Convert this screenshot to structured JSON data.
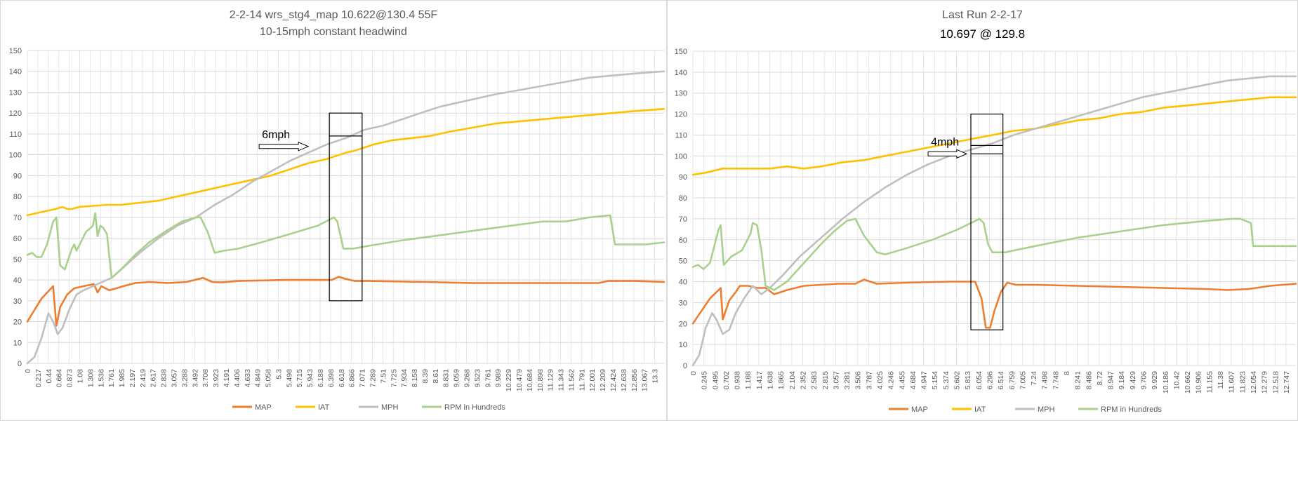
{
  "chart_data": [
    {
      "type": "line",
      "title": "2-2-14 wrs_stg4_map 10.622@130.4  55F",
      "subtitle": "10-15mph constant headwind",
      "ylim": [
        0,
        150
      ],
      "yticks": [
        0,
        10,
        20,
        30,
        40,
        50,
        60,
        70,
        80,
        90,
        100,
        110,
        120,
        130,
        140,
        150
      ],
      "xlim": [
        0,
        13.6
      ],
      "x_tick_labels": [
        "0",
        "0.217",
        "0.44",
        "0.664",
        "0.873",
        "1.08",
        "1.308",
        "1.536",
        "1.761",
        "1.985",
        "2.197",
        "2.419",
        "2.617",
        "2.838",
        "3.057",
        "3.288",
        "3.492",
        "3.708",
        "3.923",
        "4.191",
        "4.406",
        "4.633",
        "4.849",
        "5.058",
        "5.3",
        "5.498",
        "5.715",
        "5.943",
        "6.188",
        "6.398",
        "6.618",
        "6.866",
        "7.071",
        "7.289",
        "7.51",
        "7.725",
        "7.934",
        "8.158",
        "8.39",
        "8.61",
        "8.831",
        "9.059",
        "9.268",
        "9.523",
        "9.761",
        "9.989",
        "10.229",
        "10.479",
        "10.684",
        "10.898",
        "11.129",
        "11.343",
        "11.562",
        "11.791",
        "12.001",
        "12.209",
        "12.424",
        "12.638",
        "12.856",
        "13.067",
        "13.3"
      ],
      "grid": true,
      "legend_position": "bottom",
      "legend": [
        "MAP",
        "IAT",
        "MPH",
        "RPM in Hundreds"
      ],
      "colors": [
        "#ED7D31",
        "#FFC000",
        "#BFBFBF",
        "#A9D18E"
      ],
      "annotation": {
        "text": "6mph",
        "box": {
          "x0": 6.45,
          "x1": 7.15,
          "y0": 30,
          "y1": 120,
          "mid_y": 109
        },
        "arrow_from_x": 4.95,
        "arrow_to_x": 6.0,
        "arrow_y": 104
      },
      "series": [
        {
          "name": "MAP",
          "x": [
            0,
            0.3,
            0.55,
            0.62,
            0.7,
            0.85,
            1.0,
            1.2,
            1.42,
            1.5,
            1.58,
            1.75,
            1.9,
            2.05,
            2.3,
            2.6,
            3.0,
            3.4,
            3.75,
            3.95,
            4.15,
            4.5,
            5.5,
            6.3,
            6.5,
            6.65,
            6.8,
            7.0,
            7.3,
            8.5,
            9.5,
            10.5,
            11.5,
            12.2,
            12.4,
            12.6,
            13.0,
            13.6
          ],
          "values": [
            20,
            31,
            37,
            18,
            27,
            33,
            36,
            37,
            38,
            34,
            37,
            35,
            36,
            37,
            38.5,
            39,
            38.5,
            39,
            41,
            39,
            38.8,
            39.5,
            40,
            40,
            40,
            41.5,
            40.5,
            39.5,
            39.5,
            39,
            38.5,
            38.5,
            38.5,
            38.5,
            39.5,
            39.5,
            39.5,
            39
          ]
        },
        {
          "name": "IAT",
          "x": [
            0,
            0.2,
            0.4,
            0.6,
            0.75,
            0.85,
            0.95,
            1.1,
            1.4,
            1.7,
            2.0,
            2.4,
            2.8,
            3.2,
            3.6,
            4.0,
            4.4,
            4.8,
            5.2,
            5.6,
            6.0,
            6.4,
            6.8,
            7.0,
            7.4,
            7.8,
            8.2,
            8.6,
            9.0,
            9.5,
            10.0,
            10.5,
            11.0,
            11.5,
            12.0,
            12.5,
            13.0,
            13.6
          ],
          "values": [
            71,
            72,
            73,
            74,
            75,
            74,
            74,
            75,
            75.5,
            76,
            76,
            77,
            78,
            80,
            82,
            84,
            86,
            88,
            90,
            93,
            96,
            98,
            101,
            102,
            105,
            107,
            108,
            109,
            111,
            113,
            115,
            116,
            117,
            118,
            119,
            120,
            121,
            122
          ]
        },
        {
          "name": "MPH",
          "x": [
            0,
            0.15,
            0.3,
            0.45,
            0.55,
            0.65,
            0.75,
            0.9,
            1.05,
            1.2,
            1.4,
            1.6,
            1.8,
            2.1,
            2.4,
            2.8,
            3.2,
            3.6,
            4.0,
            4.4,
            4.8,
            5.2,
            5.6,
            6.0,
            6.4,
            6.8,
            7.2,
            7.6,
            8.0,
            8.4,
            8.8,
            9.2,
            9.6,
            10.0,
            10.5,
            11.0,
            11.5,
            12.0,
            12.5,
            13.0,
            13.6
          ],
          "values": [
            0,
            3,
            12,
            24,
            20,
            14,
            17,
            26,
            33,
            35,
            37,
            39,
            41,
            47,
            53,
            60,
            66,
            70,
            76,
            81,
            87,
            92,
            97,
            101,
            105,
            108,
            112,
            114,
            117,
            120,
            123,
            125,
            127,
            129,
            131,
            133,
            135,
            137,
            138,
            139,
            140
          ]
        },
        {
          "name": "RPM in Hundreds",
          "x": [
            0,
            0.1,
            0.2,
            0.3,
            0.42,
            0.55,
            0.62,
            0.7,
            0.8,
            0.95,
            1.0,
            1.05,
            1.25,
            1.4,
            1.45,
            1.5,
            1.56,
            1.62,
            1.7,
            1.8,
            2.0,
            2.3,
            2.6,
            3.0,
            3.3,
            3.6,
            3.7,
            3.85,
            4.0,
            4.2,
            4.5,
            5.0,
            5.6,
            6.2,
            6.55,
            6.62,
            6.75,
            6.95,
            7.2,
            8.0,
            9.0,
            10.0,
            11.0,
            11.5,
            12.0,
            12.45,
            12.55,
            12.8,
            13.2,
            13.6
          ],
          "values": [
            52,
            53,
            51,
            51,
            57,
            68,
            70,
            47,
            45,
            55,
            57,
            54,
            63,
            66,
            72,
            61,
            66,
            65,
            62,
            41,
            45,
            52,
            58,
            64,
            68,
            70,
            70,
            63,
            53,
            54,
            55,
            58,
            62,
            66,
            70,
            68,
            55,
            55,
            56,
            59,
            62,
            65,
            68,
            68,
            70,
            71,
            57,
            57,
            57,
            58
          ]
        }
      ]
    },
    {
      "type": "line",
      "title": "Last Run 2-2-17",
      "subtitle": "10.697  @ 129.8",
      "ylim": [
        0,
        150
      ],
      "yticks": [
        0,
        10,
        20,
        30,
        40,
        50,
        60,
        70,
        80,
        90,
        100,
        110,
        120,
        130,
        140,
        150
      ],
      "xlim": [
        0,
        14.1
      ],
      "x_tick_labels": [
        "0",
        "0.245",
        "0.495",
        "0.702",
        "0.938",
        "1.188",
        "1.417",
        "1.638",
        "1.865",
        "2.104",
        "2.352",
        "2.583",
        "2.815",
        "3.057",
        "3.281",
        "3.506",
        "3.787",
        "4.025",
        "4.246",
        "4.455",
        "4.684",
        "4.947",
        "5.154",
        "5.374",
        "5.602",
        "5.813",
        "6.054",
        "6.296",
        "6.514",
        "6.759",
        "7.005",
        "7.24",
        "7.498",
        "7.748",
        "8",
        "8.241",
        "8.486",
        "8.72",
        "8.947",
        "9.184",
        "9.429",
        "9.706",
        "9.929",
        "10.186",
        "10.42",
        "10.662",
        "10.906",
        "11.155",
        "11.38",
        "11.607",
        "11.823",
        "12.054",
        "12.279",
        "12.518",
        "12.747"
      ],
      "grid": true,
      "legend_position": "bottom",
      "legend": [
        "MAP",
        "IAT",
        "MPH",
        "RPM in Hundreds"
      ],
      "colors": [
        "#ED7D31",
        "#FFC000",
        "#BFBFBF",
        "#A9D18E"
      ],
      "annotation": {
        "text": "4mph",
        "box": {
          "x0": 6.5,
          "x1": 7.25,
          "y0": 17,
          "y1": 120,
          "mid_y": 105,
          "mid_y2": 101
        },
        "arrow_from_x": 5.5,
        "arrow_to_x": 6.4,
        "arrow_y": 101
      },
      "series": [
        {
          "name": "MAP",
          "x": [
            0,
            0.2,
            0.4,
            0.6,
            0.65,
            0.7,
            0.85,
            1.0,
            1.1,
            1.3,
            1.5,
            1.7,
            1.9,
            2.2,
            2.6,
            3.0,
            3.4,
            3.8,
            4.0,
            4.3,
            5.0,
            6.0,
            6.6,
            6.75,
            6.85,
            6.95,
            7.05,
            7.2,
            7.35,
            7.55,
            8.0,
            9.0,
            10.0,
            11.0,
            12.0,
            12.5,
            13.0,
            13.5,
            14.1
          ],
          "values": [
            20,
            26,
            32,
            36,
            37,
            22,
            31,
            35,
            38,
            38,
            37,
            37,
            34,
            36,
            38,
            38.5,
            39,
            39,
            41,
            39,
            39.5,
            40,
            40,
            32,
            18,
            18,
            26,
            35,
            39.5,
            38.5,
            38.5,
            38,
            37.5,
            37,
            36.5,
            36,
            36.5,
            38,
            39
          ]
        },
        {
          "name": "IAT",
          "x": [
            0,
            0.3,
            0.7,
            1.3,
            1.8,
            2.2,
            2.6,
            3.0,
            3.5,
            4.0,
            4.5,
            5.0,
            5.5,
            6.0,
            6.5,
            7.0,
            7.5,
            8.0,
            8.5,
            9.0,
            9.5,
            10.0,
            10.5,
            11.0,
            11.5,
            12.0,
            12.5,
            13.0,
            13.5,
            14.1
          ],
          "values": [
            91,
            92,
            94,
            94,
            94,
            95,
            94,
            95,
            97,
            98,
            100,
            102,
            104,
            106,
            108,
            110,
            112,
            113,
            115,
            117,
            118,
            120,
            121,
            123,
            124,
            125,
            126,
            127,
            128,
            128
          ]
        },
        {
          "name": "MPH",
          "x": [
            0,
            0.15,
            0.3,
            0.45,
            0.55,
            0.7,
            0.85,
            1.0,
            1.2,
            1.4,
            1.6,
            1.8,
            2.1,
            2.5,
            3.0,
            3.5,
            4.0,
            4.5,
            5.0,
            5.5,
            6.0,
            6.5,
            7.0,
            7.5,
            8.0,
            8.5,
            9.0,
            9.5,
            10.0,
            10.5,
            11.0,
            11.5,
            12.0,
            12.5,
            13.0,
            13.5,
            14.1
          ],
          "values": [
            0,
            5,
            18,
            25,
            22,
            15,
            17,
            25,
            32,
            38,
            34,
            37,
            43,
            52,
            61,
            70,
            78,
            85,
            91,
            96,
            100,
            103,
            106,
            110,
            113,
            116,
            119,
            122,
            125,
            128,
            130,
            132,
            134,
            136,
            137,
            138,
            138
          ]
        },
        {
          "name": "RPM in Hundreds",
          "x": [
            0,
            0.12,
            0.25,
            0.4,
            0.6,
            0.65,
            0.72,
            0.9,
            1.15,
            1.35,
            1.4,
            1.5,
            1.6,
            1.7,
            1.9,
            2.2,
            2.6,
            3.0,
            3.3,
            3.6,
            3.8,
            4.0,
            4.3,
            4.5,
            5.0,
            5.6,
            6.2,
            6.6,
            6.7,
            6.8,
            6.9,
            7.0,
            7.3,
            8.0,
            9.0,
            10.0,
            11.0,
            12.0,
            12.6,
            12.8,
            13.05,
            13.1,
            13.3,
            14.1
          ],
          "values": [
            47,
            48,
            46,
            49,
            65,
            67,
            48,
            52,
            55,
            63,
            68,
            67,
            55,
            38,
            36,
            40,
            49,
            58,
            64,
            69,
            70,
            62,
            54,
            53,
            56,
            60,
            65,
            69,
            70,
            68,
            58,
            54,
            54,
            57,
            61,
            64,
            67,
            69,
            70,
            70,
            68,
            57,
            57,
            57
          ]
        }
      ]
    }
  ]
}
